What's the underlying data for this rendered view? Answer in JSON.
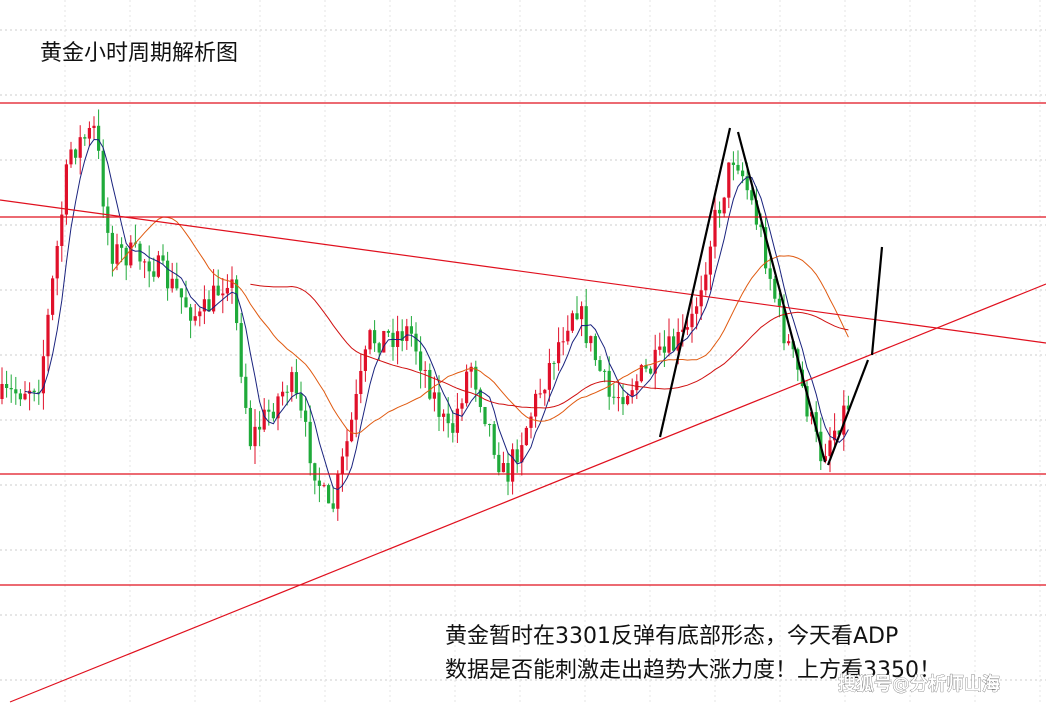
{
  "header": {
    "title": "黄金小时周期解析图"
  },
  "annotation": {
    "lines": [
      "黄金暂时在3301反弹有底部形态，今天看ADP",
      "数据是否能刺激走出趋势大涨力度！上方看3350！"
    ]
  },
  "watermark": "搜狐号@分析师山海"
}
